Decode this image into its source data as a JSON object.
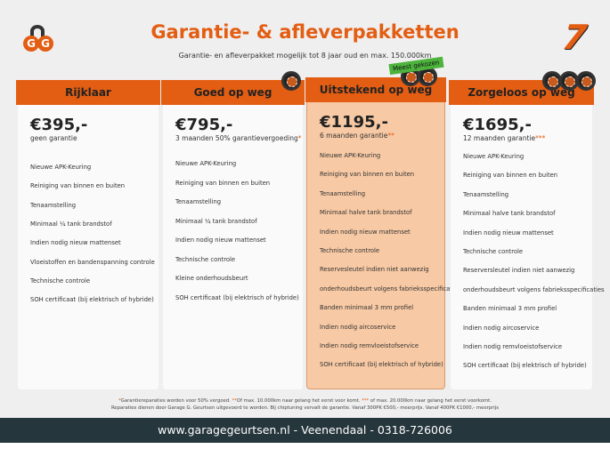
{
  "header": {
    "title": "Garantie- & afleverpakketten",
    "subtitle": "Garantie- en afleverpakket mogelijk tot 8 jaar oud en max. 150.000km",
    "logo_text": "GG",
    "brand_mark": "7",
    "badge": "Meest gekozen"
  },
  "colors": {
    "accent": "#e35d12",
    "highlight": "#f7c9a4",
    "footer": "#26363d",
    "badge": "#4db33d"
  },
  "packages": [
    {
      "name": "Rijklaar",
      "price": "€395,-",
      "note": "geen garantie",
      "stars": "",
      "wheels": 0,
      "features": [
        "Nieuwe APK-Keuring",
        "Reiniging van binnen en buiten",
        "Tenaamstelling",
        "Minimaal ¼  tank brandstof",
        "Indien nodig nieuw mattenset",
        "Vloeistoffen en bandenspanning controle",
        "Technische controle",
        "SOH certificaat (bij elektrisch of hybride)"
      ]
    },
    {
      "name": "Goed op weg",
      "price": "€795,-",
      "note": "3 maanden 50% garantievergoeding",
      "stars": "*",
      "wheels": 1,
      "features": [
        "Nieuwe APK-Keuring",
        "Reiniging van binnen en buiten",
        "Tenaamstelling",
        "Minimaal ¼ tank brandstof",
        "Indien nodig nieuw mattenset",
        "Technische controle",
        "Kleine onderhoudsbeurt",
        "SOH certificaat (bij elektrisch of hybride)"
      ]
    },
    {
      "name": "Uitstekend op weg",
      "price": "€1195,-",
      "note": "6 maanden garantie",
      "stars": "**",
      "wheels": 2,
      "features": [
        "Nieuwe APK-Keuring",
        "Reiniging van binnen en buiten",
        "Tenaamstelling",
        "Minimaal halve tank brandstof",
        "Indien nodig nieuw mattenset",
        "Technische controle",
        "Reservesleutel indien niet aanwezig",
        "onderhoudsbeurt volgens fabrieksspecificaties",
        "Banden minimaal 3 mm profiel",
        "Indien nodig aircoservice",
        "Indien nodig remvloeistofservice",
        "SOH certificaat (bij elektrisch of hybride)"
      ]
    },
    {
      "name": "Zorgeloos op weg",
      "price": "€1695,-",
      "note": "12 maanden garantie",
      "stars": "***",
      "wheels": 3,
      "features": [
        "Nieuwe APK-Keuring",
        "Reiniging van binnen en buiten",
        "Tenaamstelling",
        "Minimaal halve tank brandstof",
        "Indien nodig nieuw mattenset",
        "Technische controle",
        "Reserversleutel indien niet aanwezig",
        "onderhoudsbeurt volgens fabrieksspecificaties",
        "Banden minimaal 3 mm profiel",
        "Indien nodig aircoservice",
        "Indien nodig remvloeistofservice",
        "SOH certificaat (bij elektrisch of hybride)"
      ]
    }
  ],
  "fineprint": {
    "s1": "*",
    "t1": "Garantiereparaties worden voor 50% vergoed. ",
    "s2": "**",
    "t2": "Of max. 10.000km naar gelang het eerst voor komt. ",
    "s3": "***",
    "t3": " of max. 20.000km naar gelang het eerst voorkomt.",
    "line2": "Reparaties dienen door Garage G. Geurtsen uitgevoerd te worden. Bij chiptuning vervalt de garantie. Vanaf 300PK €500,- meerprijs. Vanaf 400PK €1000,- meerprijs"
  },
  "footer": {
    "contact": "www.garagegeurtsen.nl - Veenendaal - 0318-726006"
  }
}
